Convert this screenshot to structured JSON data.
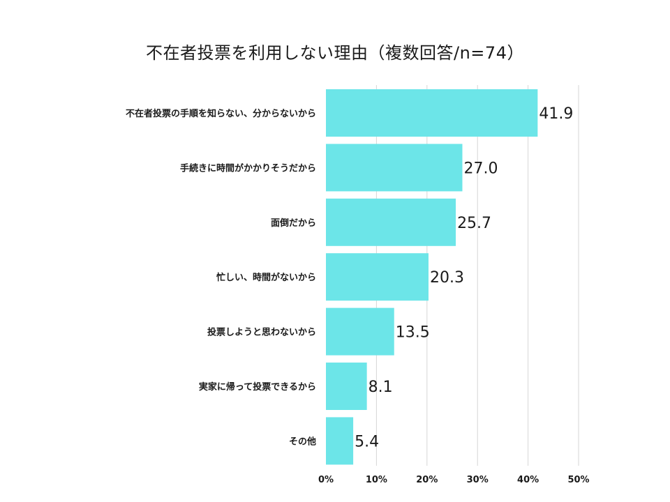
{
  "chart_data": {
    "type": "bar",
    "orientation": "horizontal",
    "title": "不在者投票を利用しない理由（複数回答/n=74）",
    "categories": [
      "不在者投票の手順を知らない、分からないから",
      "手続きに時間がかかりそうだから",
      "面倒だから",
      "忙しい、時間がないから",
      "投票しようと思わないから",
      "実家に帰って投票できるから",
      "その他"
    ],
    "values": [
      41.9,
      27.0,
      25.7,
      20.3,
      13.5,
      8.1,
      5.4
    ],
    "value_labels": [
      "41.9",
      "27.0",
      "25.7",
      "20.3",
      "13.5",
      "8.1",
      "5.4"
    ],
    "xlim": [
      0,
      50
    ],
    "x_ticks": [
      "0%",
      "10%",
      "20%",
      "30%",
      "40%",
      "50%"
    ],
    "grid": true,
    "legend": "none",
    "bar_color": "#6ce5e8",
    "xlabel": "",
    "ylabel": ""
  }
}
